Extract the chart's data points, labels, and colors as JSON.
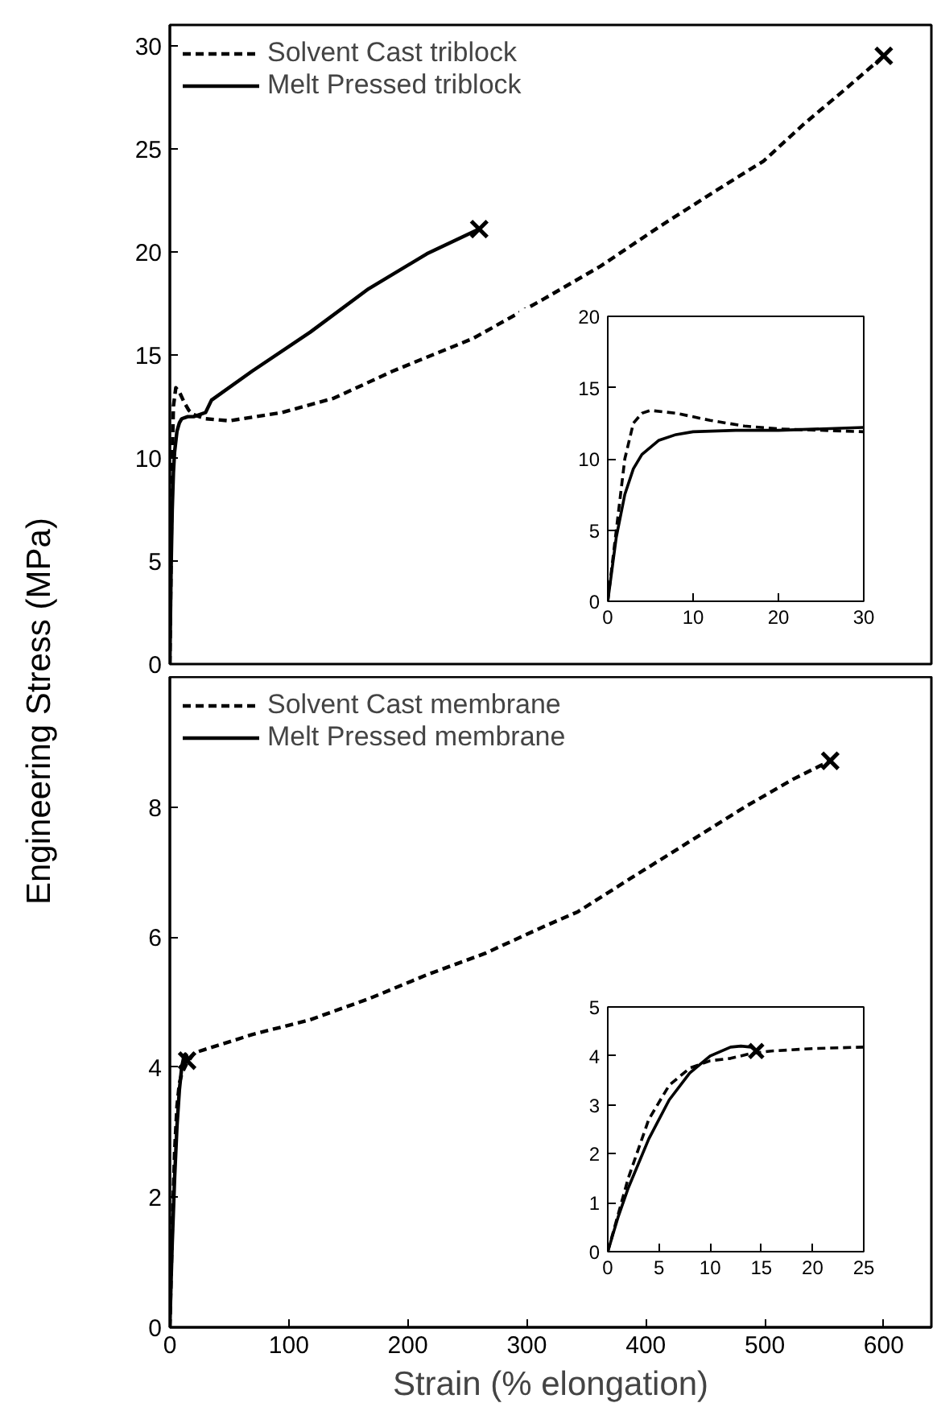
{
  "chart_data": [
    {
      "type": "line",
      "ylabel": "Engineering Stress (MPa)",
      "xlim": [
        0,
        640
      ],
      "ylim": [
        0,
        31
      ],
      "xticks": [
        0,
        100,
        200,
        300,
        400,
        500,
        600
      ],
      "yticks": [
        0,
        5,
        10,
        15,
        20,
        25,
        30
      ],
      "tick_labels": "y",
      "grid": false,
      "legend": "top left",
      "series": [
        {
          "name": "Solvent Cast triblock",
          "color": "#000000",
          "line_style": "dashed",
          "x": [
            0,
            1,
            2,
            3,
            5,
            8,
            12,
            16,
            20,
            30,
            50,
            94,
            138,
            187,
            255,
            314,
            362,
            411,
            460,
            499,
            533,
            568,
            600
          ],
          "values": [
            0,
            5,
            10,
            12.5,
            13.4,
            13.2,
            12.7,
            12.3,
            12.1,
            11.9,
            11.8,
            12.2,
            12.9,
            14.2,
            15.8,
            17.7,
            19.3,
            21.2,
            23.0,
            24.4,
            26.2,
            27.9,
            29.5
          ]
        },
        {
          "name": "Melt Pressed triblock",
          "color": "#000000",
          "line_style": "solid",
          "x": [
            0,
            1,
            2,
            3,
            4,
            6,
            8,
            10,
            15,
            20,
            30,
            35,
            69,
            118,
            167,
            216,
            260
          ],
          "values": [
            0,
            4.5,
            7.5,
            9.3,
            10.3,
            11.3,
            11.7,
            11.9,
            12.0,
            12.0,
            12.2,
            12.8,
            14.2,
            16.1,
            18.2,
            19.9,
            21.1
          ]
        },
        {
          "type": "scatter",
          "marker": "cross",
          "color": "#000000",
          "x": [
            600,
            260
          ],
          "values": [
            29.5,
            21.1
          ]
        }
      ]
    },
    {
      "type": "line",
      "xlim": [
        0,
        30
      ],
      "ylim": [
        0,
        20
      ],
      "xticks": [
        0,
        10,
        20,
        30
      ],
      "yticks": [
        0,
        5,
        10,
        15,
        20
      ],
      "grid": false,
      "series": [
        {
          "color": "#000000",
          "line_style": "dashed",
          "x": [
            0,
            1,
            2,
            3,
            4,
            5,
            8,
            12,
            16,
            20,
            30
          ],
          "values": [
            0,
            5,
            10,
            12.5,
            13.2,
            13.4,
            13.2,
            12.7,
            12.3,
            12.1,
            11.9
          ]
        },
        {
          "color": "#000000",
          "line_style": "solid",
          "x": [
            0,
            1,
            2,
            3,
            4,
            6,
            8,
            10,
            15,
            20,
            30
          ],
          "values": [
            0,
            4.5,
            7.5,
            9.3,
            10.3,
            11.3,
            11.7,
            11.9,
            12.0,
            12.0,
            12.2
          ]
        }
      ]
    },
    {
      "type": "line",
      "xlabel": "Strain (% elongation)",
      "xlim": [
        0,
        640
      ],
      "ylim": [
        0,
        10
      ],
      "xticks": [
        0,
        100,
        200,
        300,
        400,
        500,
        600
      ],
      "yticks": [
        0,
        2,
        4,
        6,
        8
      ],
      "grid": false,
      "legend": "top left",
      "series": [
        {
          "name": "Solvent Cast membrane",
          "color": "#000000",
          "line_style": "dashed",
          "x": [
            0,
            2,
            4,
            6,
            8,
            10,
            14,
            20.5,
            69,
            118,
            167,
            216,
            265,
            314,
            343,
            387,
            436,
            485,
            524,
            555
          ],
          "values": [
            0,
            1.5,
            2.7,
            3.4,
            3.75,
            3.9,
            4.05,
            4.22,
            4.5,
            4.73,
            5.05,
            5.42,
            5.75,
            6.16,
            6.39,
            6.9,
            7.46,
            8.02,
            8.43,
            8.71
          ]
        },
        {
          "name": "Melt Pressed membrane",
          "color": "#000000",
          "line_style": "solid",
          "x": [
            0,
            1,
            2,
            4,
            6,
            8,
            10,
            12,
            13,
            14,
            14.5
          ],
          "values": [
            0,
            0.7,
            1.3,
            2.3,
            3.1,
            3.65,
            4.0,
            4.18,
            4.2,
            4.18,
            4.1
          ]
        },
        {
          "type": "scatter",
          "marker": "cross",
          "color": "#000000",
          "x": [
            555,
            14.5
          ],
          "values": [
            8.71,
            4.1
          ]
        }
      ]
    },
    {
      "type": "line",
      "xlim": [
        0,
        25
      ],
      "ylim": [
        0,
        5
      ],
      "xticks": [
        0,
        5,
        10,
        15,
        20,
        25
      ],
      "yticks": [
        0,
        1,
        2,
        3,
        4,
        5
      ],
      "grid": false,
      "series": [
        {
          "color": "#000000",
          "line_style": "dashed",
          "x": [
            0,
            2,
            4,
            6,
            8,
            10,
            12,
            14,
            16,
            20,
            25
          ],
          "values": [
            0,
            1.5,
            2.7,
            3.4,
            3.75,
            3.9,
            3.95,
            4.05,
            4.1,
            4.15,
            4.18
          ]
        },
        {
          "color": "#000000",
          "line_style": "solid",
          "x": [
            0,
            1,
            2,
            4,
            6,
            8,
            10,
            12,
            13,
            14,
            14.5
          ],
          "values": [
            0,
            0.7,
            1.3,
            2.3,
            3.1,
            3.65,
            4.0,
            4.18,
            4.2,
            4.18,
            4.1
          ]
        },
        {
          "type": "scatter",
          "marker": "cross",
          "color": "#000000",
          "x": [
            14.5
          ],
          "values": [
            4.1
          ]
        }
      ]
    }
  ]
}
